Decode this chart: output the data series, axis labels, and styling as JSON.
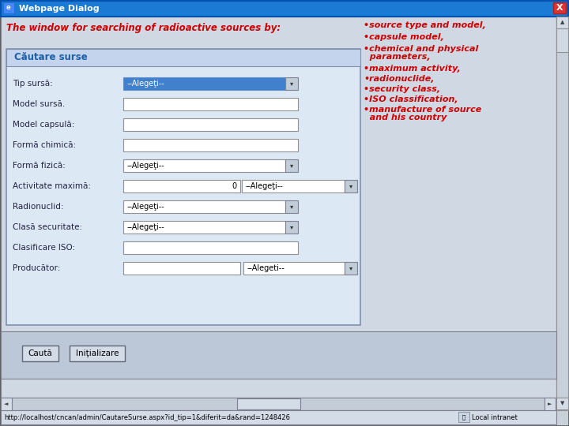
{
  "title_bar_text": "Webpage Dialog",
  "title_bar_bg": "#1a7ad4",
  "title_bar_text_color": "#ffffff",
  "window_bg": "#c8d0d8",
  "content_bg": "#d4dce8",
  "form_bg": "#dce4f0",
  "heading_text": "The window for searching of radioactive sources by:",
  "heading_color": "#cc0000",
  "bullet_text": [
    "•source type and model,",
    "•capsule model,",
    "•chemical and physical",
    "  parameters,",
    "•maximum activity,",
    "•radionuclide,",
    "•security class,",
    "•ISO classification,",
    "•manufacture of source",
    "  and his country"
  ],
  "bullet_color": "#cc0000",
  "form_title": "Căutare surse",
  "form_title_color": "#1a5fa8",
  "fields": [
    {
      "label": "Tip sursă:",
      "type": "dropdown_blue",
      "value": "--Alegeţi--"
    },
    {
      "label": "Model sursă.",
      "type": "text",
      "value": ""
    },
    {
      "label": "Model capsulă:",
      "type": "text",
      "value": ""
    },
    {
      "label": "Formă chimică:",
      "type": "text",
      "value": ""
    },
    {
      "label": "Formă fizică:",
      "type": "dropdown",
      "value": "--Alegeţi--"
    },
    {
      "label": "Activitate maximă:",
      "type": "text_and_dropdown",
      "text_value": "0",
      "dd_value": "--Alegeţi--"
    },
    {
      "label": "Radionuclid:",
      "type": "dropdown",
      "value": "--Alegeţi--"
    },
    {
      "label": "Clasă securitate:",
      "type": "dropdown",
      "value": "--Alegeţi--"
    },
    {
      "label": "Clasificare ISO:",
      "type": "text",
      "value": ""
    },
    {
      "label": "Producător:",
      "type": "text_and_dropdown2",
      "text_value": "",
      "dd_value": "--Alegeti--"
    }
  ],
  "button1": "Caută",
  "button2": "Iniţializare",
  "status_bar": "http://localhost/cncan/admin/CautareSurse.aspx?id_tip=1&diferit=da&rand=1248426",
  "scrollbar_bg": "#d0d8e0",
  "scrollbar_thumb": "#c0c8d4"
}
